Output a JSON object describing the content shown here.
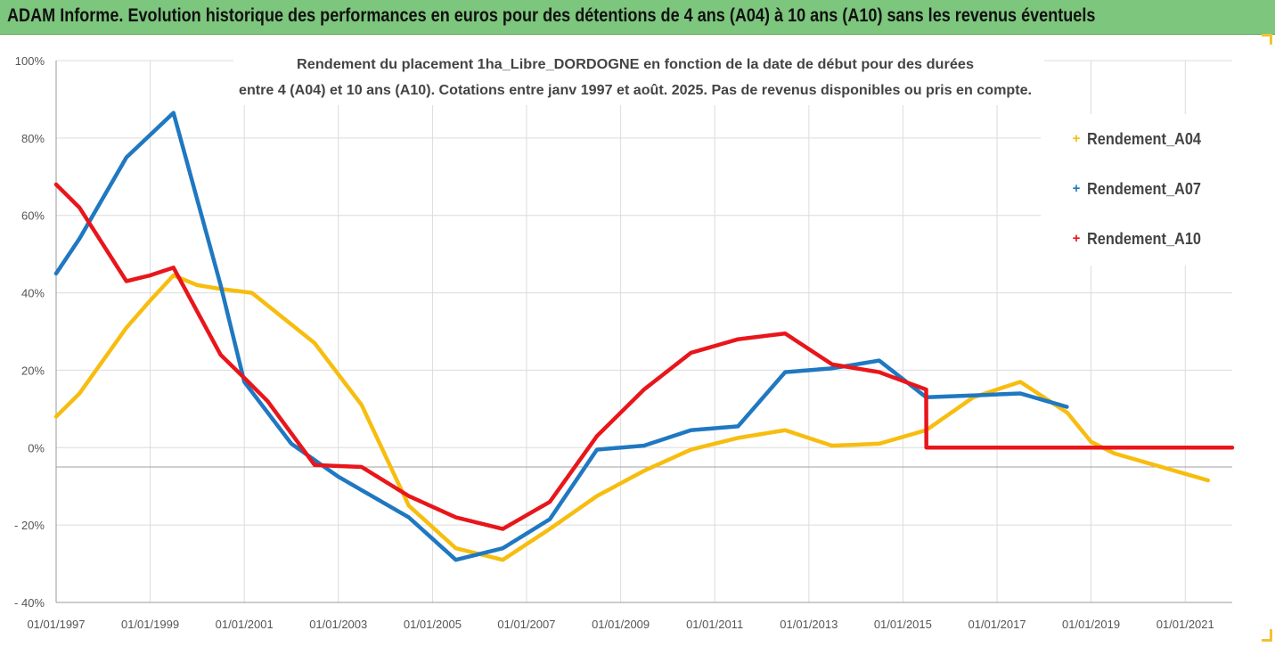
{
  "banner_title": "ADAM Informe. Evolution historique des performances en euros pour des détentions de 4 ans (A04) à 10 ans (A10) sans les revenus éventuels",
  "chart_data": {
    "type": "line",
    "title_line1": "Rendement du placement 1ha_Libre_DORDOGNE en fonction de la date de début pour des durées",
    "title_line2": "entre 4 (A04) et 10 ans (A10). Cotations entre janv 1997 et août. 2025. Pas de revenus disponibles ou pris en compte.",
    "xlim": [
      "1997-01-01",
      "2022-01-01"
    ],
    "ylim": [
      -40,
      100
    ],
    "y_ticks": [
      100,
      80,
      60,
      40,
      20,
      0,
      -20,
      -40
    ],
    "y_tick_labels": [
      "100%",
      "80%",
      "60%",
      "40%",
      "20%",
      "0%",
      "- 20%",
      "- 40%"
    ],
    "x_tick_labels": [
      "01/01/1997",
      "01/01/1999",
      "01/01/2001",
      "01/01/2003",
      "01/01/2005",
      "01/01/2007",
      "01/01/2009",
      "01/01/2011",
      "01/01/2013",
      "01/01/2015",
      "01/01/2017",
      "01/01/2019",
      "01/01/2021"
    ],
    "x_tick_dates": [
      "1997-01-01",
      "1999-01-01",
      "2001-01-01",
      "2003-01-01",
      "2005-01-01",
      "2007-01-01",
      "2009-01-01",
      "2011-01-01",
      "2013-01-01",
      "2015-01-01",
      "2017-01-01",
      "2019-01-01",
      "2021-01-01"
    ],
    "grid": true,
    "legend_position": "right",
    "series": [
      {
        "name": "Rendement_A04",
        "color": "#f7bd0f",
        "points": [
          [
            "1997-01-01",
            8
          ],
          [
            "1997-07-01",
            14
          ],
          [
            "1998-07-01",
            31
          ],
          [
            "1999-01-01",
            38
          ],
          [
            "1999-07-01",
            44.5
          ],
          [
            "2000-01-01",
            42
          ],
          [
            "2000-07-01",
            41
          ],
          [
            "2001-03-01",
            40
          ],
          [
            "2002-07-01",
            27
          ],
          [
            "2003-07-01",
            11
          ],
          [
            "2004-07-01",
            -15
          ],
          [
            "2005-07-01",
            -26
          ],
          [
            "2006-07-01",
            -29
          ],
          [
            "2007-07-01",
            -21
          ],
          [
            "2008-07-01",
            -12.5
          ],
          [
            "2009-07-01",
            -6
          ],
          [
            "2010-07-01",
            -0.5
          ],
          [
            "2011-07-01",
            2.5
          ],
          [
            "2012-07-01",
            4.5
          ],
          [
            "2013-07-01",
            0.5
          ],
          [
            "2014-07-01",
            1
          ],
          [
            "2015-07-01",
            4.5
          ],
          [
            "2016-07-01",
            13
          ],
          [
            "2017-07-01",
            17
          ],
          [
            "2018-07-01",
            9
          ],
          [
            "2019-01-01",
            1.5
          ],
          [
            "2019-07-01",
            -1.5
          ],
          [
            "2020-07-01",
            -5
          ],
          [
            "2021-07-01",
            -8.5
          ]
        ]
      },
      {
        "name": "Rendement_A07",
        "color": "#1f78c1",
        "points": [
          [
            "1997-01-01",
            45
          ],
          [
            "1997-07-01",
            54
          ],
          [
            "1998-07-01",
            75
          ],
          [
            "1999-07-01",
            86.5
          ],
          [
            "2000-07-01",
            42
          ],
          [
            "2001-01-01",
            17
          ],
          [
            "2002-01-01",
            1
          ],
          [
            "2003-01-01",
            -7.5
          ],
          [
            "2004-07-01",
            -18
          ],
          [
            "2005-07-01",
            -29
          ],
          [
            "2006-07-01",
            -26
          ],
          [
            "2007-07-01",
            -18.5
          ],
          [
            "2008-07-01",
            -0.5
          ],
          [
            "2009-07-01",
            0.5
          ],
          [
            "2010-07-01",
            4.5
          ],
          [
            "2011-07-01",
            5.5
          ],
          [
            "2012-07-01",
            19.5
          ],
          [
            "2013-07-01",
            20.5
          ],
          [
            "2014-07-01",
            22.5
          ],
          [
            "2015-07-01",
            13
          ],
          [
            "2016-07-01",
            13.5
          ],
          [
            "2017-07-01",
            14
          ],
          [
            "2018-07-01",
            10.5
          ]
        ]
      },
      {
        "name": "Rendement_A10",
        "color": "#e8161b",
        "points": [
          [
            "1997-01-01",
            68
          ],
          [
            "1997-07-01",
            62
          ],
          [
            "1998-07-01",
            43
          ],
          [
            "1999-01-01",
            44.5
          ],
          [
            "1999-07-01",
            46.5
          ],
          [
            "2000-07-01",
            24
          ],
          [
            "2001-01-01",
            18
          ],
          [
            "2001-07-01",
            12
          ],
          [
            "2002-07-01",
            -4.5
          ],
          [
            "2003-07-01",
            -5
          ],
          [
            "2004-07-01",
            -12.5
          ],
          [
            "2005-07-01",
            -18
          ],
          [
            "2006-07-01",
            -21
          ],
          [
            "2007-07-01",
            -14
          ],
          [
            "2008-07-01",
            3
          ],
          [
            "2009-07-01",
            15
          ],
          [
            "2010-07-01",
            24.5
          ],
          [
            "2011-07-01",
            28
          ],
          [
            "2012-07-01",
            29.5
          ],
          [
            "2013-07-01",
            21.5
          ],
          [
            "2014-07-01",
            19.5
          ],
          [
            "2015-07-01",
            15
          ],
          [
            "2015-07-02",
            0
          ],
          [
            "2016-07-01",
            0
          ],
          [
            "2018-07-01",
            0
          ],
          [
            "2020-07-01",
            0
          ],
          [
            "2022-01-01",
            0
          ]
        ]
      }
    ]
  }
}
